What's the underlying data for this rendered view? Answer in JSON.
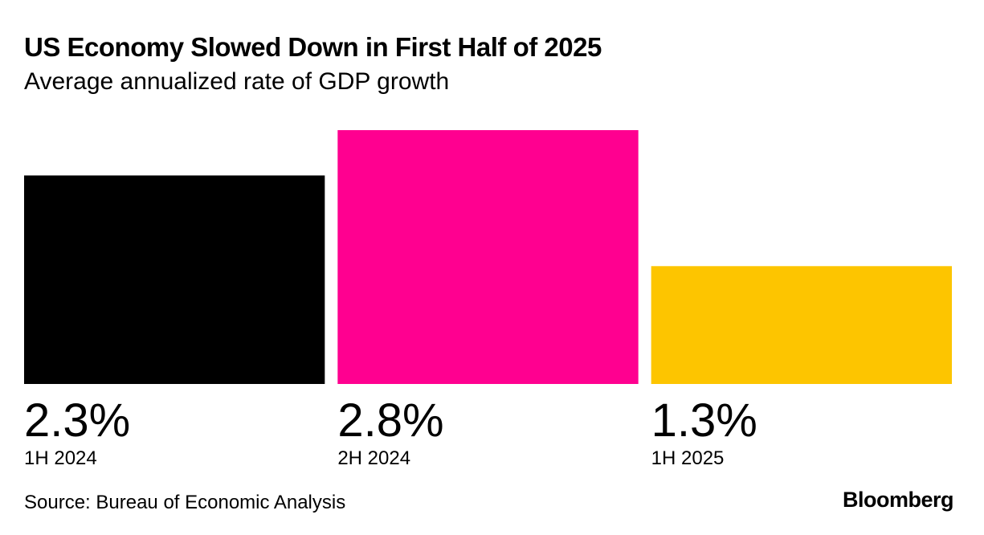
{
  "chart_data": {
    "type": "bar",
    "title": "US Economy Slowed Down in First Half of 2025",
    "subtitle": "Average annualized rate of GDP growth",
    "categories": [
      "1H 2024",
      "2H 2024",
      "1H 2025"
    ],
    "values": [
      2.3,
      2.8,
      1.3
    ],
    "value_labels": [
      "2.3%",
      "2.8%",
      "1.3%"
    ],
    "colors": [
      "#000000",
      "#ff0090",
      "#fdc500"
    ],
    "xlabel": "",
    "ylabel": "",
    "ylim": [
      0,
      2.8
    ],
    "grid": false,
    "legend": "none"
  },
  "footer": {
    "source": "Source: Bureau of Economic Analysis",
    "brand": "Bloomberg"
  }
}
